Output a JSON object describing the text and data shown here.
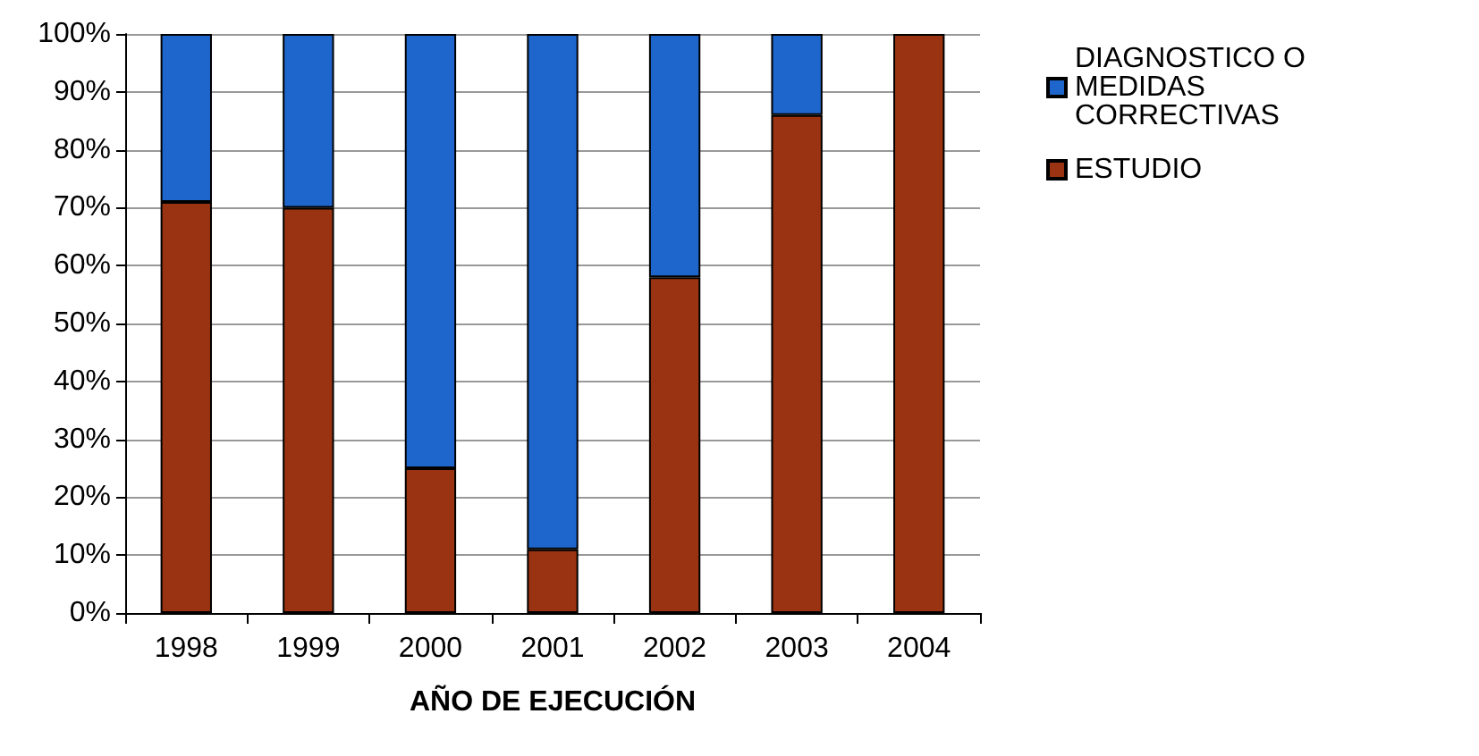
{
  "chart_data": {
    "type": "bar",
    "stacked": true,
    "xlabel": "AÑO DE EJECUCIÓN",
    "categories": [
      "1998",
      "1999",
      "2000",
      "2001",
      "2002",
      "2003",
      "2004"
    ],
    "series": [
      {
        "name": "ESTUDIO",
        "color": "#993311",
        "values": [
          71,
          70,
          25,
          11,
          58,
          86,
          100
        ]
      },
      {
        "name": "DIAGNOSTICO O MEDIDAS CORRECTIVAS",
        "color": "#1f66cc",
        "values": [
          29,
          30,
          75,
          89,
          42,
          14,
          0
        ]
      }
    ],
    "ylim": [
      0,
      100
    ],
    "yticks": [
      {
        "value": 0,
        "label": "0%"
      },
      {
        "value": 10,
        "label": "10%"
      },
      {
        "value": 20,
        "label": "20%"
      },
      {
        "value": 30,
        "label": "30%"
      },
      {
        "value": 40,
        "label": "40%"
      },
      {
        "value": 50,
        "label": "50%"
      },
      {
        "value": 60,
        "label": "60%"
      },
      {
        "value": 70,
        "label": "70%"
      },
      {
        "value": 80,
        "label": "80%"
      },
      {
        "value": 90,
        "label": "90%"
      },
      {
        "value": 100,
        "label": "100%"
      }
    ],
    "grid": "y",
    "legend": "right"
  }
}
